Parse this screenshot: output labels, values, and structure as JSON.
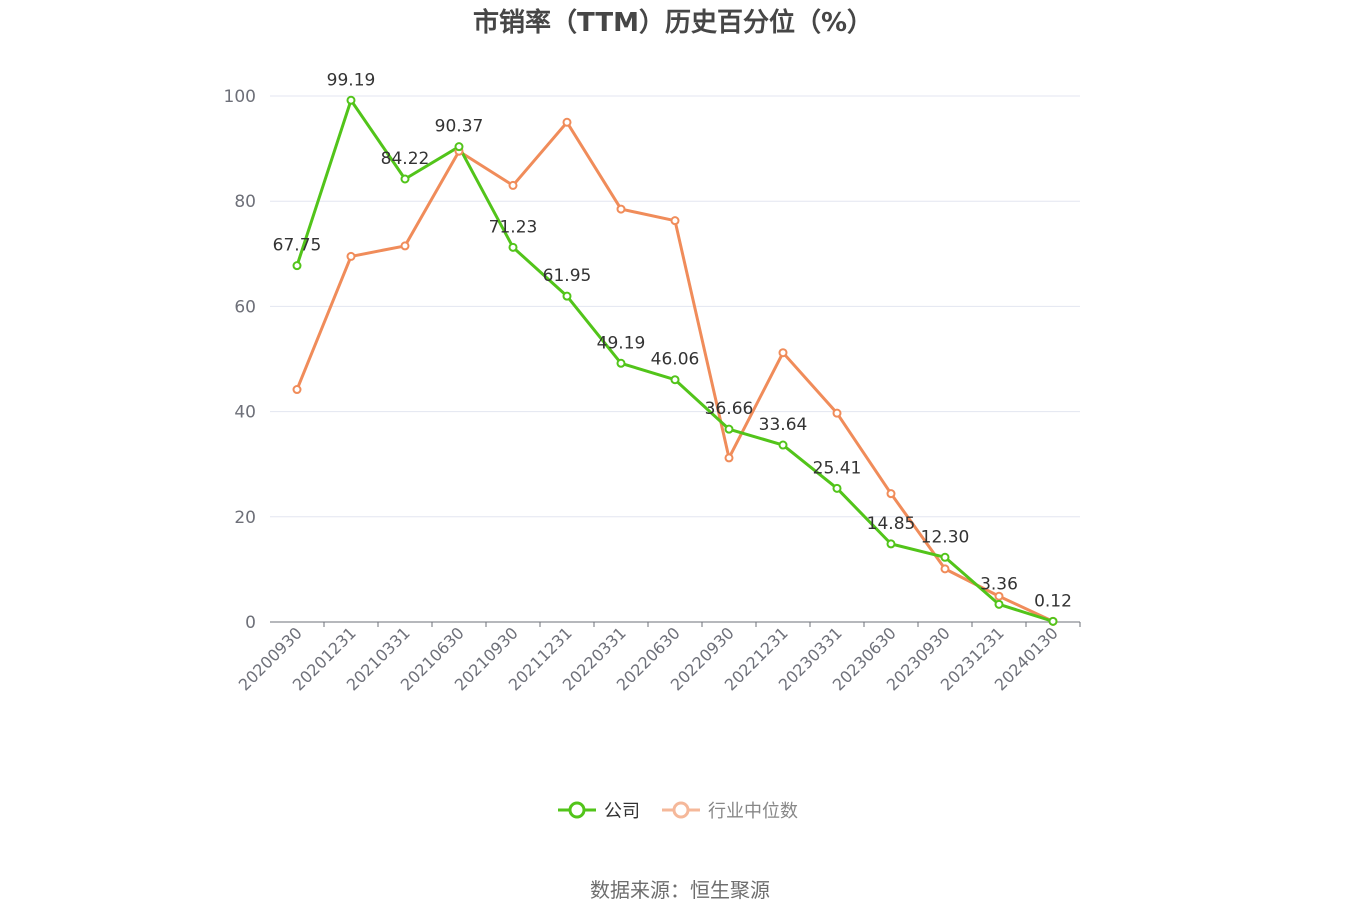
{
  "source": "数据来源：恒生聚源",
  "chart_data": {
    "type": "line",
    "title": "市销率（TTM）历史百分位（%）",
    "xlabel": "",
    "ylabel": "",
    "ylim": [
      0,
      100
    ],
    "yticks": [
      0,
      20,
      40,
      60,
      80,
      100
    ],
    "grid": true,
    "legend_position": "bottom",
    "categories": [
      "20200930",
      "20201231",
      "20210331",
      "20210630",
      "20210930",
      "20211231",
      "20220331",
      "20220630",
      "20220930",
      "20221231",
      "20230331",
      "20230630",
      "20230930",
      "20231231",
      "20240130"
    ],
    "series": [
      {
        "name": "公司",
        "color": "#52c41a",
        "values": [
          67.75,
          99.19,
          84.22,
          90.37,
          71.23,
          61.95,
          49.19,
          46.06,
          36.66,
          33.64,
          25.41,
          14.85,
          12.3,
          3.36,
          0.12
        ],
        "labels": [
          "67.75",
          "99.19",
          "84.22",
          "90.37",
          "71.23",
          "61.95",
          "49.19",
          "46.06",
          "36.66",
          "33.64",
          "25.41",
          "14.85",
          "12.30",
          "3.36",
          "0.12"
        ]
      },
      {
        "name": "行业中位数",
        "color": "#f08c5a",
        "values": [
          44.2,
          69.5,
          71.5,
          89.5,
          83.0,
          95.0,
          78.5,
          76.3,
          31.2,
          51.2,
          39.7,
          24.4,
          10.1,
          4.9,
          0.12
        ]
      }
    ]
  }
}
